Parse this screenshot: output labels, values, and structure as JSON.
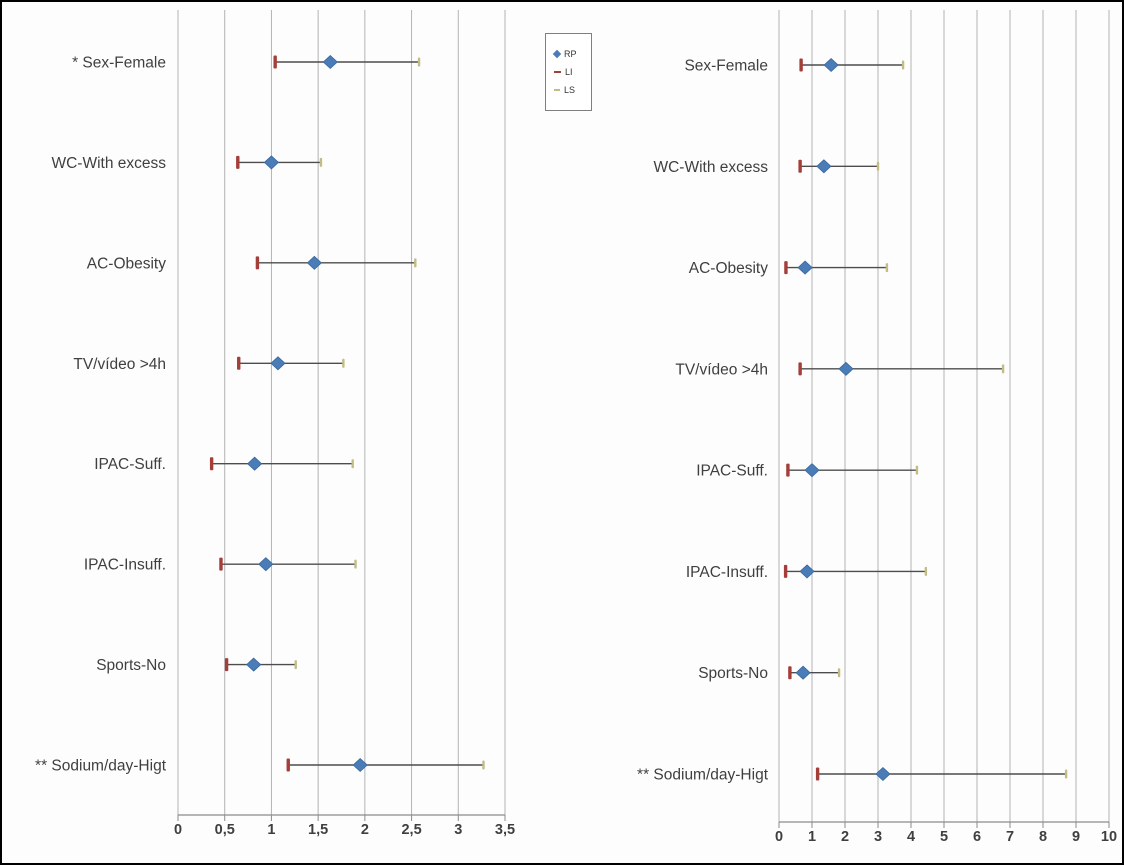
{
  "figure": {
    "background": "#fdfdfd",
    "border_color": "#000000",
    "gridline_color": "#b3b3b3",
    "axis_color": "#8c8c8c",
    "ci_line_color": "#4d4d4d",
    "text_color": "#3f3f3f"
  },
  "legend": {
    "items": [
      {
        "label": "RP",
        "marker": "diamond",
        "color": "#4a7cb8"
      },
      {
        "label": "LI",
        "marker": "dash",
        "color": "#a43e38"
      },
      {
        "label": "LS",
        "marker": "dash",
        "color": "#c2bc85"
      }
    ]
  },
  "chart_data": [
    {
      "id": "left",
      "type": "scatter",
      "subtype": "forest-plot",
      "title": "",
      "xlabel": "",
      "ylabel": "",
      "grid": true,
      "legend_position": "top-right",
      "categories": [
        "* Sex-Female",
        "WC-With excess",
        "AC-Obesity",
        "TV/vídeo >4h",
        "IPAC-Suff.",
        "IPAC-Insuff.",
        "Sports-No",
        "** Sodium/day-Higt"
      ],
      "xlim": [
        0,
        3.5
      ],
      "xticks": [
        0,
        0.5,
        1,
        1.5,
        2,
        2.5,
        3,
        3.5
      ],
      "xtick_labels": [
        "0",
        "0,5",
        "1",
        "1,5",
        "2",
        "2,5",
        "3",
        "3,5"
      ],
      "series": [
        {
          "name": "RP",
          "marker": "diamond",
          "color": "#4a7cb8",
          "values": [
            1.63,
            1.0,
            1.46,
            1.07,
            0.82,
            0.94,
            0.81,
            1.95
          ]
        },
        {
          "name": "LI",
          "marker": "dash",
          "color": "#a43e38",
          "values": [
            1.04,
            0.64,
            0.85,
            0.65,
            0.36,
            0.46,
            0.52,
            1.18
          ]
        },
        {
          "name": "LS",
          "marker": "dash",
          "color": "#c2bc85",
          "values": [
            2.58,
            1.53,
            2.54,
            1.77,
            1.87,
            1.9,
            1.26,
            3.27
          ]
        }
      ]
    },
    {
      "id": "right",
      "type": "scatter",
      "subtype": "forest-plot",
      "title": "",
      "xlabel": "",
      "ylabel": "",
      "grid": true,
      "legend_position": "none",
      "categories": [
        "Sex-Female",
        "WC-With excess",
        "AC-Obesity",
        "TV/vídeo >4h",
        "IPAC-Suff.",
        "IPAC-Insuff.",
        "Sports-No",
        "** Sodium/day-Higt"
      ],
      "xlim": [
        0,
        10
      ],
      "xticks": [
        0,
        1,
        2,
        3,
        4,
        5,
        6,
        7,
        8,
        9,
        10
      ],
      "xtick_labels": [
        "0",
        "1",
        "2",
        "3",
        "4",
        "5",
        "6",
        "7",
        "8",
        "9",
        "10"
      ],
      "series": [
        {
          "name": "RP",
          "marker": "diamond",
          "color": "#4a7cb8",
          "values": [
            1.58,
            1.36,
            0.79,
            2.03,
            1.0,
            0.85,
            0.73,
            3.15
          ]
        },
        {
          "name": "LI",
          "marker": "dash",
          "color": "#a43e38",
          "values": [
            0.67,
            0.64,
            0.21,
            0.64,
            0.27,
            0.2,
            0.33,
            1.17
          ]
        },
        {
          "name": "LS",
          "marker": "dash",
          "color": "#c2bc85",
          "values": [
            3.76,
            3.0,
            3.27,
            6.79,
            4.18,
            4.45,
            1.82,
            8.7
          ]
        }
      ]
    }
  ]
}
